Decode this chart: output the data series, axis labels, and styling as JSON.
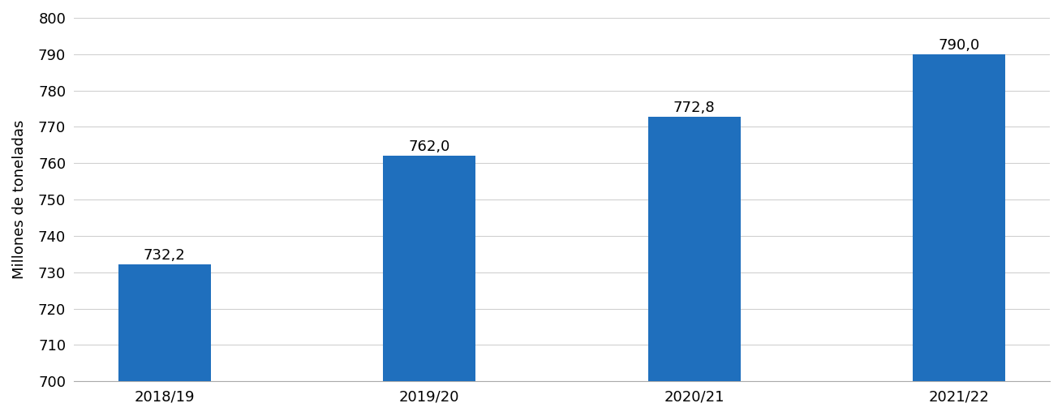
{
  "categories": [
    "2018/19",
    "2019/20",
    "2020/21",
    "2021/22"
  ],
  "values": [
    732.2,
    762.0,
    772.8,
    790.0
  ],
  "bar_color": "#1F6FBD",
  "ylabel": "Millones de toneladas",
  "ylim": [
    700,
    800
  ],
  "yticks": [
    700,
    710,
    720,
    730,
    740,
    750,
    760,
    770,
    780,
    790,
    800
  ],
  "bar_labels": [
    "732,2",
    "762,0",
    "772,8",
    "790,0"
  ],
  "label_fontsize": 13,
  "tick_fontsize": 13,
  "ylabel_fontsize": 13,
  "background_color": "#ffffff",
  "grid_color": "#d0d0d0",
  "bar_width": 0.35
}
